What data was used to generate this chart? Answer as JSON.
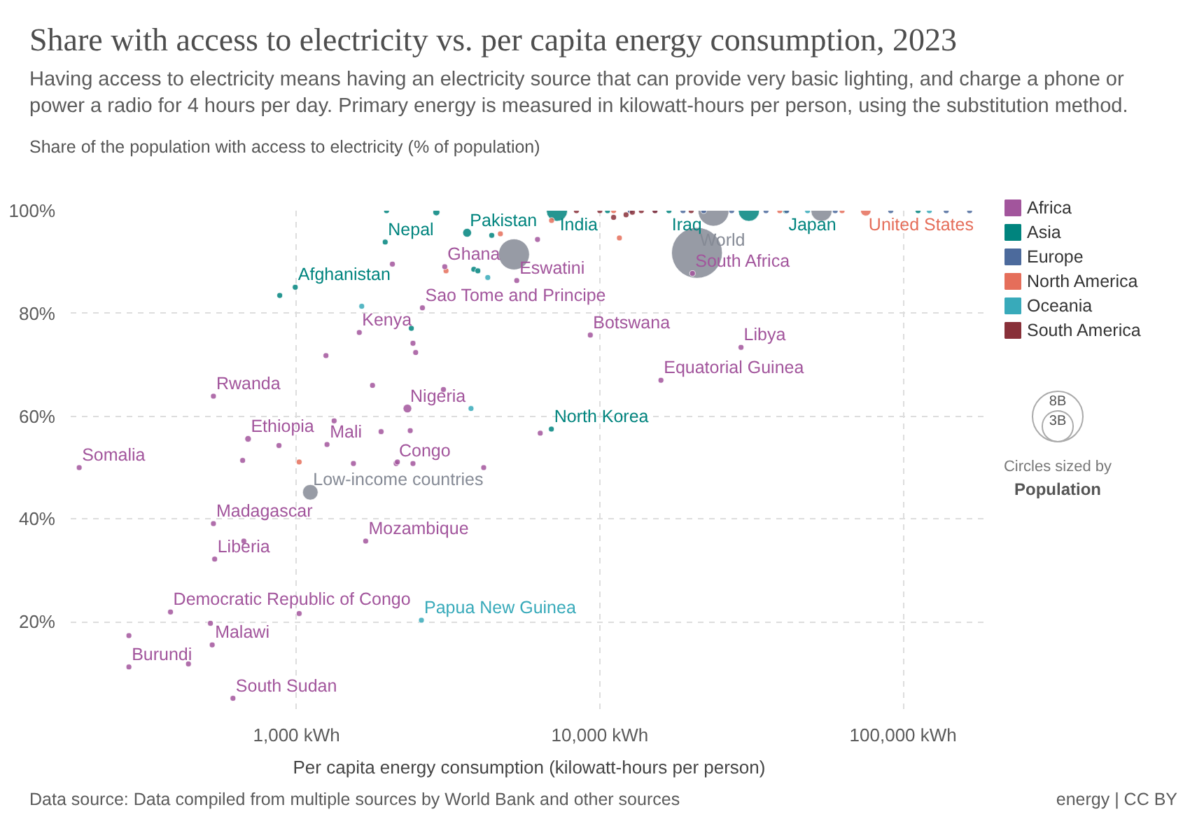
{
  "chart_data": {
    "type": "bubble",
    "title": "Share with access to electricity vs. per capita energy consumption, 2023",
    "subtitle": "Having access to electricity means having an electricity source that can provide very basic lighting, and charge a phone or power a radio for 4 hours per day. Primary energy is measured in kilowatt-hours per person, using the substitution method.",
    "ylabel": "Share of the population with access to electricity (% of population)",
    "xlabel": "Per capita energy consumption (kilowatt-hours per person)",
    "log": "x",
    "grid": true,
    "legend": "right",
    "marker": "circle",
    "xlim": [
      180,
      190000
    ],
    "ylim": [
      3,
      100
    ],
    "xticks": [
      {
        "value": 1000,
        "label": "1,000 kWh"
      },
      {
        "value": 10000,
        "label": "10,000 kWh"
      },
      {
        "value": 100000,
        "label": "100,000 kWh"
      }
    ],
    "yticks": [
      {
        "value": 20,
        "label": "20%"
      },
      {
        "value": 40,
        "label": "40%"
      },
      {
        "value": 60,
        "label": "60%"
      },
      {
        "value": 80,
        "label": "80%"
      },
      {
        "value": 100,
        "label": "100%"
      }
    ],
    "size_legend": [
      {
        "value": 8,
        "label": "8B"
      },
      {
        "value": 3,
        "label": "3B"
      }
    ],
    "series": [
      {
        "name": "Africa",
        "color": "#a2559c",
        "x": [
          20200,
          29200,
          15900,
          9300,
          5320,
          3080,
          2600,
          1610,
          532,
          2320,
          692,
          1260,
          2130,
          192,
          532,
          537,
          1690,
          384,
          527,
          280,
          617,
          2070,
          1250,
          1780,
          2420,
          2470,
          3050,
          1330,
          1900,
          2370,
          875,
          664,
          1540,
          2150,
          2420,
          4140,
          6360,
          670,
          280,
          440,
          1020,
          520,
          6230
        ],
        "values": [
          87.8,
          73.4,
          67.0,
          75.8,
          86.4,
          89.1,
          81.1,
          76.3,
          63.9,
          61.5,
          55.6,
          54.5,
          50.8,
          50.0,
          39.1,
          32.2,
          35.7,
          21.9,
          15.5,
          11.2,
          5.1,
          89.6,
          71.8,
          66.0,
          74.2,
          72.4,
          65.2,
          59.1,
          57.0,
          57.2,
          54.3,
          51.4,
          50.8,
          51.1,
          50.8,
          50.0,
          56.7,
          35.7,
          17.3,
          11.8,
          21.6,
          19.7,
          94.4
        ],
        "sizes": [
          0.1,
          0.1,
          0.1,
          0.1,
          0.1,
          0.1,
          0.1,
          0.1,
          0.1,
          0.23,
          0.13,
          0.1,
          0.1,
          0.1,
          0.1,
          0.1,
          0.1,
          0.1,
          0.1,
          0.1,
          0.1,
          0.1,
          0.1,
          0.1,
          0.1,
          0.1,
          0.1,
          0.1,
          0.1,
          0.1,
          0.1,
          0.1,
          0.1,
          0.1,
          0.1,
          0.1,
          0.1,
          0.1,
          0.1,
          0.1,
          0.1,
          0.1,
          0.1
        ]
      },
      {
        "name": "Asia",
        "color": "#00847e",
        "x": [
          1960,
          990,
          880,
          3650,
          7220,
          6920,
          16900,
          41000,
          31000,
          1980,
          2890,
          4400,
          3840,
          2390,
          3960,
          10600,
          112000
        ],
        "values": [
          93.9,
          85.1,
          83.5,
          95.7,
          100,
          57.5,
          100,
          100,
          100,
          100,
          99.7,
          95.2,
          88.6,
          77.1,
          88.3,
          100,
          100
        ],
        "sizes": [
          0.1,
          0.1,
          0.1,
          0.24,
          1.4,
          0.1,
          0.1,
          0.12,
          1.4,
          0.1,
          0.15,
          0.1,
          0.1,
          0.1,
          0.1,
          0.1,
          0.1
        ]
      },
      {
        "name": "Europe",
        "color": "#4c6a9c",
        "x": [
          12600,
          15200,
          18800,
          22000,
          27200,
          35300,
          41300,
          59700,
          91000,
          138700,
          165600
        ],
        "values": [
          100,
          100,
          100,
          100,
          100,
          100,
          100,
          100,
          100,
          100,
          100
        ],
        "sizes": [
          0.1,
          0.1,
          0.1,
          0.1,
          0.1,
          0.1,
          0.1,
          0.1,
          0.1,
          0.1,
          0.1
        ]
      },
      {
        "name": "North America",
        "color": "#e56e5a",
        "x": [
          75300,
          3110,
          1020,
          4700,
          11600,
          6930,
          39200,
          11100,
          62900
        ],
        "values": [
          100,
          88.3,
          51.1,
          95.5,
          94.7,
          98.1,
          100,
          100,
          100
        ],
        "sizes": [
          0.34,
          0.1,
          0.1,
          0.1,
          0.1,
          0.1,
          0.1,
          0.1,
          0.1
        ]
      },
      {
        "name": "Oceania",
        "color": "#38aaba",
        "x": [
          2580,
          1640,
          4270,
          3760,
          48400,
          122000
        ],
        "values": [
          20.3,
          81.4,
          87.0,
          61.5,
          100,
          100
        ],
        "sizes": [
          0.1,
          0.1,
          0.1,
          0.1,
          0.1,
          0.1
        ]
      },
      {
        "name": "South America",
        "color": "#883039",
        "x": [
          8370,
          11100,
          12200,
          12800,
          13700,
          15200,
          10000,
          20000
        ],
        "values": [
          100,
          98.7,
          99.2,
          99.7,
          100,
          100,
          100,
          100
        ],
        "sizes": [
          0.1,
          0.1,
          0.1,
          0.1,
          0.1,
          0.1,
          0.1,
          0.1
        ]
      },
      {
        "color": "#858a95",
        "x": [
          20900,
          23700,
          5210,
          53800,
          1110
        ],
        "values": [
          91.8,
          100,
          91.5,
          100,
          45.2
        ],
        "sizes": [
          8.1,
          3.0,
          3.0,
          1.4,
          0.75
        ]
      }
    ],
    "annotations": [
      {
        "text": "South Africa",
        "x": 20200,
        "y": 87.8
      },
      {
        "text": "Libya",
        "x": 29200,
        "y": 73.4
      },
      {
        "text": "Equatorial Guinea",
        "x": 15900,
        "y": 67.0
      },
      {
        "text": "Botswana",
        "x": 9300,
        "y": 75.8
      },
      {
        "text": "Eswatini",
        "x": 5320,
        "y": 86.4
      },
      {
        "text": "Ghana",
        "x": 3080,
        "y": 89.1
      },
      {
        "text": "Sao Tome and Principe",
        "x": 2600,
        "y": 81.1
      },
      {
        "text": "Kenya",
        "x": 1610,
        "y": 76.3
      },
      {
        "text": "Rwanda",
        "x": 532,
        "y": 63.9
      },
      {
        "text": "Nigeria",
        "x": 2320,
        "y": 61.5
      },
      {
        "text": "Ethiopia",
        "x": 692,
        "y": 55.6
      },
      {
        "text": "Mali",
        "x": 1260,
        "y": 54.5
      },
      {
        "text": "Congo",
        "x": 2130,
        "y": 50.8
      },
      {
        "text": "Somalia",
        "x": 192,
        "y": 50.0
      },
      {
        "text": "Madagascar",
        "x": 532,
        "y": 39.1
      },
      {
        "text": "Liberia",
        "x": 537,
        "y": 32.2
      },
      {
        "text": "Mozambique",
        "x": 1690,
        "y": 35.7
      },
      {
        "text": "Democratic Republic of Congo",
        "x": 384,
        "y": 21.9
      },
      {
        "text": "Malawi",
        "x": 527,
        "y": 15.5
      },
      {
        "text": "Burundi",
        "x": 280,
        "y": 11.2
      },
      {
        "text": "South Sudan",
        "x": 617,
        "y": 5.1
      },
      {
        "text": "Nepal",
        "x": 1960,
        "y": 93.9
      },
      {
        "text": "Afghanistan",
        "x": 990,
        "y": 85.1
      },
      {
        "text": "Pakistan",
        "x": 3650,
        "y": 95.7
      },
      {
        "text": "India",
        "x": 7220,
        "y": 100
      },
      {
        "text": "North Korea",
        "x": 6920,
        "y": 57.5
      },
      {
        "text": "Iraq",
        "x": 16900,
        "y": 100
      },
      {
        "text": "Japan",
        "x": 41000,
        "y": 100
      },
      {
        "text": "United States",
        "x": 75300,
        "y": 100
      },
      {
        "text": "Papua New Guinea",
        "x": 2580,
        "y": 20.3
      },
      {
        "text": "World",
        "x": 20900,
        "y": 91.8
      },
      {
        "text": "Low-income countries",
        "x": 1110,
        "y": 45.2
      },
      "Circles sized by Population",
      "Data source: Data compiled from multiple sources by World Bank and other sources",
      "energy | CC BY"
    ]
  }
}
